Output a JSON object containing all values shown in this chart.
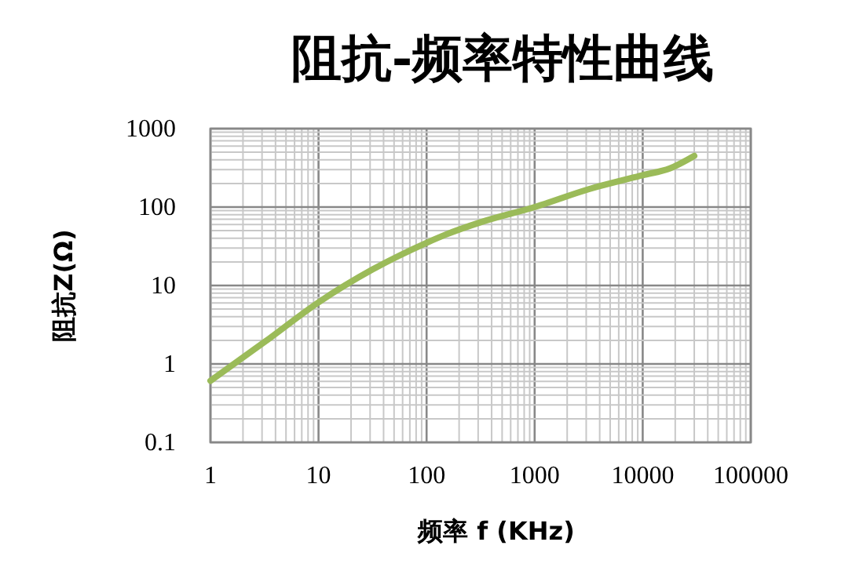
{
  "chart_data": {
    "type": "line",
    "title": "阻抗-频率特性曲线",
    "xlabel": "频率 f (KHz)",
    "ylabel": "阻抗Z(Ω)",
    "log": "xy",
    "grid": true,
    "marker": "none",
    "line_style": "solid",
    "xlim": [
      1,
      100000
    ],
    "ylim": [
      0.1,
      1000
    ],
    "xticks": [
      1,
      {
        "value": 2,
        "label": null
      },
      {
        "value": 3,
        "label": null
      },
      {
        "value": 4,
        "label": null
      },
      {
        "value": 5,
        "label": null
      },
      {
        "value": 6,
        "label": null
      },
      {
        "value": 7,
        "label": null
      },
      {
        "value": 8,
        "label": null
      },
      {
        "value": 9,
        "label": null
      },
      10,
      {
        "value": 20,
        "label": null
      },
      {
        "value": 30,
        "label": null
      },
      {
        "value": 40,
        "label": null
      },
      {
        "value": 50,
        "label": null
      },
      {
        "value": 60,
        "label": null
      },
      {
        "value": 70,
        "label": null
      },
      {
        "value": 80,
        "label": null
      },
      {
        "value": 90,
        "label": null
      },
      100,
      {
        "value": 200,
        "label": null
      },
      {
        "value": 300,
        "label": null
      },
      {
        "value": 400,
        "label": null
      },
      {
        "value": 500,
        "label": null
      },
      {
        "value": 600,
        "label": null
      },
      {
        "value": 700,
        "label": null
      },
      {
        "value": 800,
        "label": null
      },
      {
        "value": 900,
        "label": null
      },
      1000,
      {
        "value": 2000,
        "label": null
      },
      {
        "value": 3000,
        "label": null
      },
      {
        "value": 4000,
        "label": null
      },
      {
        "value": 5000,
        "label": null
      },
      {
        "value": 6000,
        "label": null
      },
      {
        "value": 7000,
        "label": null
      },
      {
        "value": 8000,
        "label": null
      },
      {
        "value": 9000,
        "label": null
      },
      10000,
      {
        "value": 20000,
        "label": null
      },
      {
        "value": 30000,
        "label": null
      },
      {
        "value": 40000,
        "label": null
      },
      {
        "value": 50000,
        "label": null
      },
      {
        "value": 60000,
        "label": null
      },
      {
        "value": 70000,
        "label": null
      },
      {
        "value": 80000,
        "label": null
      },
      {
        "value": 90000,
        "label": null
      },
      100000
    ],
    "yticks": [
      0.1,
      {
        "value": 0.2,
        "label": null
      },
      {
        "value": 0.3,
        "label": null
      },
      {
        "value": 0.4,
        "label": null
      },
      {
        "value": 0.5,
        "label": null
      },
      {
        "value": 0.6,
        "label": null
      },
      {
        "value": 0.7,
        "label": null
      },
      {
        "value": 0.8,
        "label": null
      },
      {
        "value": 0.9,
        "label": null
      },
      1,
      {
        "value": 2,
        "label": null
      },
      {
        "value": 3,
        "label": null
      },
      {
        "value": 4,
        "label": null
      },
      {
        "value": 5,
        "label": null
      },
      {
        "value": 6,
        "label": null
      },
      {
        "value": 7,
        "label": null
      },
      {
        "value": 8,
        "label": null
      },
      {
        "value": 9,
        "label": null
      },
      10,
      {
        "value": 20,
        "label": null
      },
      {
        "value": 30,
        "label": null
      },
      {
        "value": 40,
        "label": null
      },
      {
        "value": 50,
        "label": null
      },
      {
        "value": 60,
        "label": null
      },
      {
        "value": 70,
        "label": null
      },
      {
        "value": 80,
        "label": null
      },
      {
        "value": 90,
        "label": null
      },
      100,
      {
        "value": 200,
        "label": null
      },
      {
        "value": 300,
        "label": null
      },
      {
        "value": 400,
        "label": null
      },
      {
        "value": 500,
        "label": null
      },
      {
        "value": 600,
        "label": null
      },
      {
        "value": 700,
        "label": null
      },
      {
        "value": 800,
        "label": null
      },
      {
        "value": 900,
        "label": null
      },
      1000
    ],
    "series": [
      {
        "color": "#9bbb59",
        "x": [
          1,
          3.16,
          10,
          31.6,
          100,
          147,
          316,
          1000,
          3162,
          10000,
          17800,
          30000
        ],
        "values": [
          0.61,
          1.9,
          6.1,
          16,
          35,
          44,
          64,
          100,
          169,
          255,
          311,
          450
        ]
      }
    ]
  }
}
